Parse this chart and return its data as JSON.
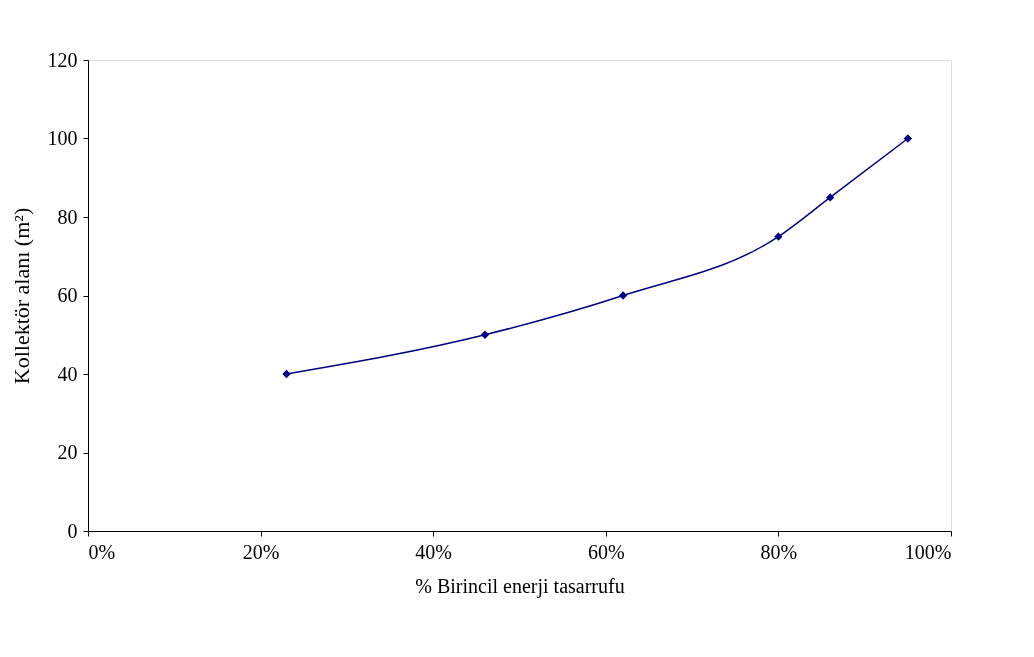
{
  "chart_data": {
    "type": "line",
    "xlabel": "% Birincil enerji tasarrufu",
    "ylabel": "Kollektör alanı (m²)",
    "x": [
      23,
      46,
      62,
      80,
      86,
      95
    ],
    "series": [
      {
        "color": "#000080",
        "values": [
          40,
          50,
          60,
          75,
          85,
          100
        ]
      }
    ],
    "xlim": [
      0,
      100
    ],
    "xticks": [
      {
        "value": 0,
        "label": "0%"
      },
      {
        "value": 20,
        "label": "20%"
      },
      {
        "value": 40,
        "label": "40%"
      },
      {
        "value": 60,
        "label": "60%"
      },
      {
        "value": 80,
        "label": "80%"
      },
      {
        "value": 100,
        "label": "100%"
      }
    ],
    "ylim": [
      0,
      120
    ],
    "yticks": [
      0,
      20,
      40,
      60,
      80,
      100,
      120
    ],
    "grid": false,
    "marker": "diamond",
    "line_style": "solid"
  }
}
